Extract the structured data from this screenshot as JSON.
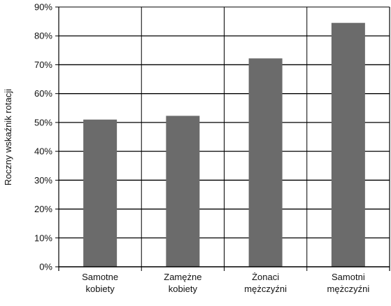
{
  "chart_data": {
    "type": "bar",
    "categories": [
      [
        "Samotne",
        "kobiety"
      ],
      [
        "Zamężne",
        "kobiety"
      ],
      [
        "Żonaci",
        "mężczyźni"
      ],
      [
        "Samotni",
        "mężczyźni"
      ]
    ],
    "values": [
      51,
      52.3,
      72.2,
      84.5
    ],
    "ylabel": "Roczny wskaźnik rotacji",
    "xlabel": "",
    "ylim": [
      0,
      90
    ],
    "ytick_step": 10,
    "ytick_suffix": "%",
    "grid": true,
    "bar_color": "#6b6b6b",
    "grid_color": "#000000"
  }
}
